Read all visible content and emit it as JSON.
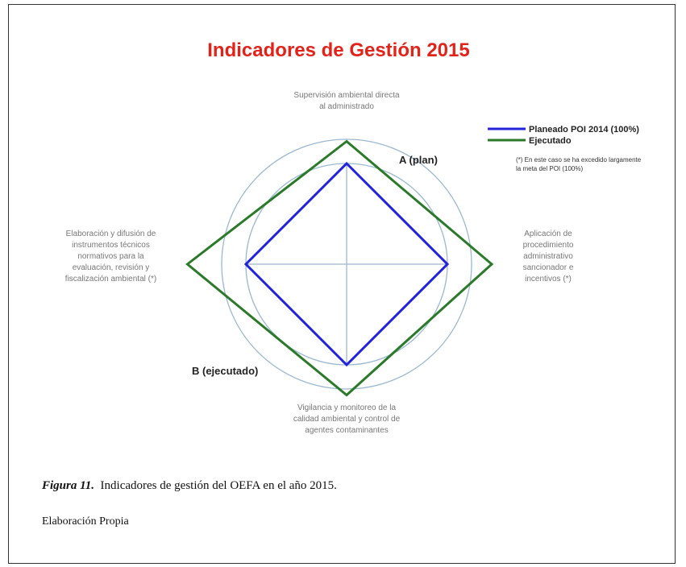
{
  "chart_data": {
    "type": "radar",
    "title": "Indicadores de Gestión 2015",
    "categories": [
      "Supervisión ambiental directa al administrado",
      "Aplicación de procedimiento administrativo sancionador e incentivos (*)",
      "Vigilancia y monitoreo de la calidad ambiental y control de agentes contaminantes",
      "Elaboración y difusión de instrumentos técnicos normativos para la evaluación, revisión y fiscalización ambiental (*)"
    ],
    "series": [
      {
        "name": "Planeado POI 2014 (100%)",
        "color": "#2222dd",
        "values": [
          100,
          100,
          100,
          100
        ]
      },
      {
        "name": "Ejecutado",
        "color": "#2a7a2a",
        "values": [
          122,
          144,
          130,
          158
        ]
      }
    ],
    "rlim": [
      0,
      160
    ],
    "annotations": [
      "A (plan)",
      "B (ejecutado)"
    ],
    "note": "(*) En este caso se ha excedido largamente la meta del POI (100%)"
  },
  "caption": {
    "label": "Figura 11.",
    "text": "Indicadores de gestión del OEFA en el año 2015."
  },
  "source": "Elaboración Propia"
}
